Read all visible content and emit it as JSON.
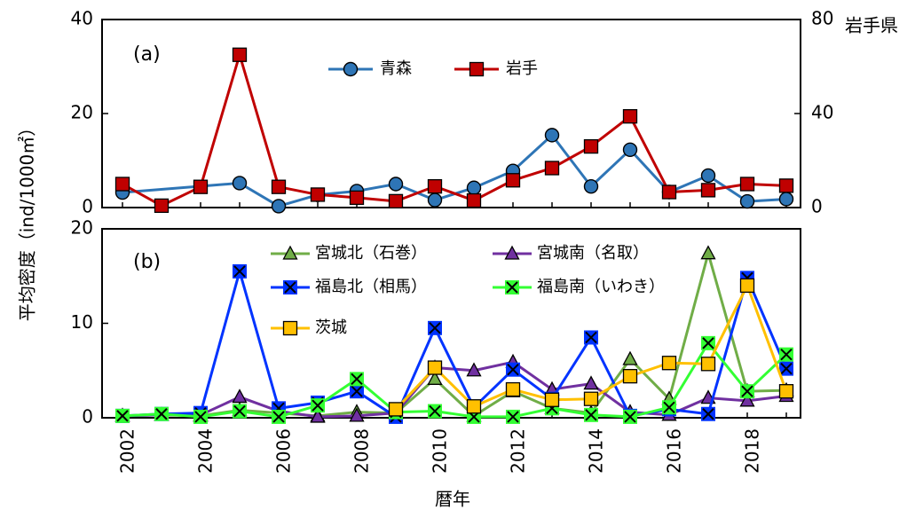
{
  "chart_data": [
    {
      "panel": "(a)",
      "type": "line",
      "panel_label": "(a)",
      "x_range": [
        2002,
        2019
      ],
      "y_left": {
        "ylim": [
          0,
          40
        ],
        "ticks": [
          0,
          20,
          40
        ]
      },
      "y_right": {
        "ylim": [
          0,
          80
        ],
        "ticks": [
          0,
          40,
          80
        ],
        "label": "岩手県"
      },
      "series": [
        {
          "name": "青森",
          "axis": "left",
          "color": "#2e75b6",
          "marker": "circle",
          "x": [
            2002,
            2003,
            2004,
            2005,
            2006,
            2007,
            2008,
            2009,
            2010,
            2011,
            2012,
            2013,
            2014,
            2015,
            2016,
            2017,
            2018,
            2019
          ],
          "values": [
            3.2,
            null,
            null,
            5.2,
            0.3,
            2.7,
            3.5,
            5.0,
            1.6,
            4.2,
            7.8,
            15.4,
            4.5,
            12.3,
            3.3,
            6.8,
            1.3,
            1.8
          ]
        },
        {
          "name": "岩手",
          "axis": "right",
          "color": "#c00000",
          "marker": "square",
          "x": [
            2002,
            2003,
            2004,
            2005,
            2006,
            2007,
            2008,
            2009,
            2010,
            2011,
            2012,
            2013,
            2014,
            2015,
            2016,
            2017,
            2018,
            2019
          ],
          "values": [
            10,
            0.8,
            8.8,
            65,
            8.8,
            5.5,
            4.2,
            2.7,
            9.0,
            3.0,
            11.6,
            16.8,
            26,
            38.8,
            6.6,
            7.4,
            10,
            9.3
          ]
        }
      ]
    },
    {
      "panel": "(b)",
      "type": "line",
      "panel_label": "(b)",
      "x_range": [
        2002,
        2019
      ],
      "y_left": {
        "ylim": [
          0,
          20
        ],
        "ticks": [
          0,
          10,
          20
        ]
      },
      "xlabel": "暦年",
      "x_ticks": [
        2002,
        2004,
        2006,
        2008,
        2010,
        2012,
        2014,
        2016,
        2018
      ],
      "series": [
        {
          "name": "宮城北（石巻）",
          "color": "#70ad47",
          "marker": "triangle",
          "x": [
            2002,
            2003,
            2004,
            2005,
            2006,
            2007,
            2008,
            2009,
            2010,
            2011,
            2012,
            2013,
            2014,
            2015,
            2016,
            2017,
            2018,
            2019
          ],
          "values": [
            0.2,
            0.3,
            0.2,
            0.8,
            0.5,
            0.2,
            0.6,
            0.5,
            4.1,
            0.2,
            2.8,
            1.0,
            0.5,
            6.2,
            2.0,
            17.4,
            2.8,
            2.9
          ]
        },
        {
          "name": "宮城南（名取）",
          "color": "#7030a0",
          "marker": "triangle",
          "x": [
            2002,
            2003,
            2004,
            2005,
            2006,
            2007,
            2008,
            2009,
            2010,
            2011,
            2012,
            2013,
            2014,
            2015,
            2016,
            2017,
            2018,
            2019
          ],
          "values": [
            0.2,
            0.3,
            0.3,
            2.2,
            0.7,
            0.1,
            0.2,
            0.5,
            5.3,
            5.0,
            5.9,
            3.0,
            3.6,
            0.6,
            0.3,
            2.1,
            1.8,
            2.3
          ]
        },
        {
          "name": "福島北（相馬）",
          "color": "#0033ff",
          "marker": "xsquare",
          "x": [
            2002,
            2003,
            2004,
            2005,
            2006,
            2007,
            2008,
            2009,
            2010,
            2011,
            2012,
            2013,
            2014,
            2015,
            2016,
            2017,
            2018,
            2019
          ],
          "values": [
            0.2,
            0.4,
            0.5,
            15.5,
            1.0,
            1.6,
            2.8,
            0.1,
            9.5,
            1.1,
            5.1,
            2.0,
            8.5,
            0.2,
            0.9,
            0.4,
            14.8,
            5.2
          ]
        },
        {
          "name": "福島南（いわき）",
          "color": "#33ff33",
          "marker": "xsquare",
          "x": [
            2002,
            2003,
            2004,
            2005,
            2006,
            2007,
            2008,
            2009,
            2010,
            2011,
            2012,
            2013,
            2014,
            2015,
            2016,
            2017,
            2018,
            2019
          ],
          "values": [
            0.2,
            0.4,
            0.1,
            0.7,
            0.1,
            1.3,
            4.1,
            0.6,
            0.7,
            0.1,
            0.1,
            1.0,
            0.3,
            0.1,
            1.1,
            7.9,
            2.8,
            6.7
          ]
        },
        {
          "name": "茨城",
          "color": "#ffc000",
          "marker": "square",
          "x": [
            2002,
            2003,
            2004,
            2005,
            2006,
            2007,
            2008,
            2009,
            2010,
            2011,
            2012,
            2013,
            2014,
            2015,
            2016,
            2017,
            2018,
            2019
          ],
          "values": [
            null,
            null,
            null,
            null,
            null,
            null,
            null,
            0.9,
            5.3,
            1.2,
            3.0,
            1.9,
            2.0,
            4.4,
            5.8,
            5.7,
            14.0,
            2.8
          ]
        }
      ]
    }
  ],
  "ylabel": "平均密度（ind/1000㎡）"
}
